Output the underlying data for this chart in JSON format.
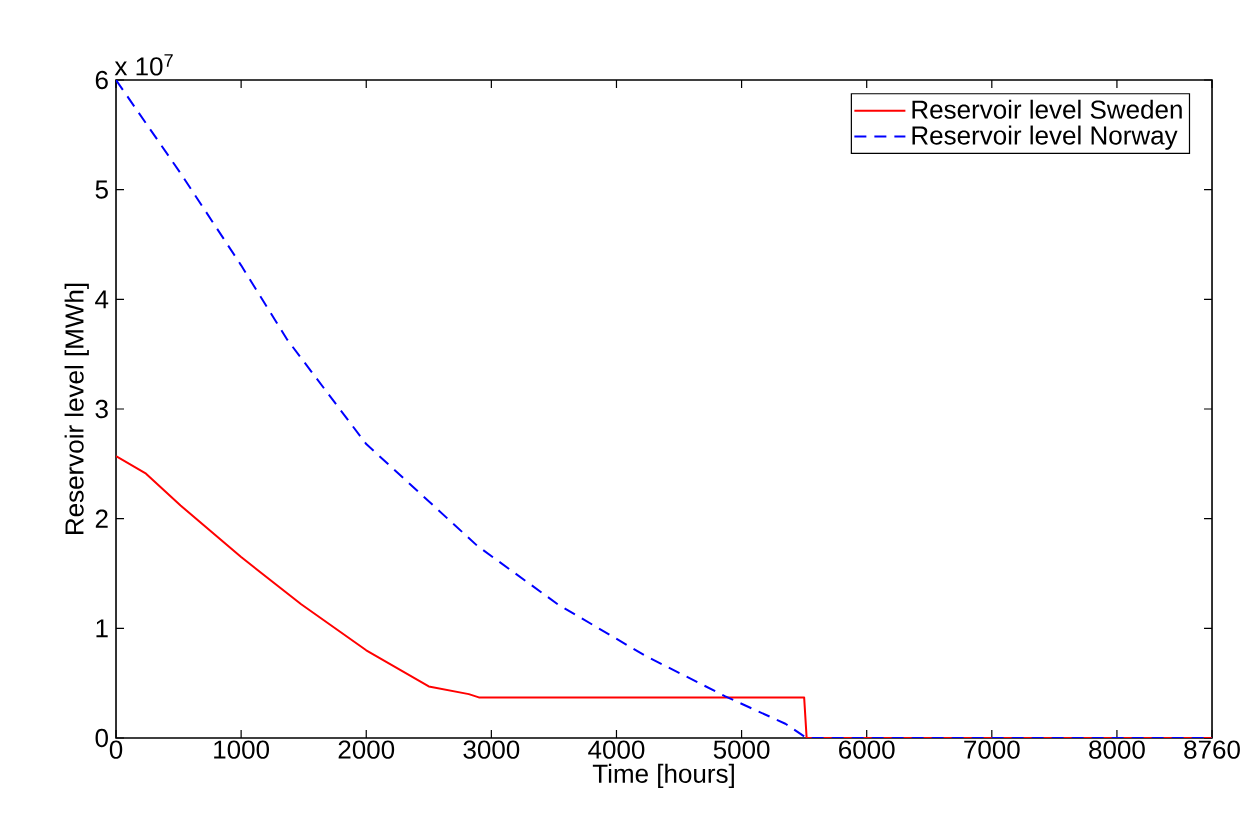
{
  "chart_data": {
    "type": "line",
    "xlabel": "Time [hours]",
    "ylabel": "Reservoir level [MWh]",
    "annotations": [
      "x 10$^{7}$"
    ],
    "xlim": [
      0,
      8760
    ],
    "xticks": [
      0,
      1000,
      2000,
      3000,
      4000,
      5000,
      6000,
      7000,
      8000,
      8760
    ],
    "ylim": [
      0,
      6
    ],
    "yticks": [
      0,
      1,
      2,
      3,
      4,
      5,
      6
    ],
    "grid": false,
    "legend": "top right",
    "marker": "none",
    "series": [
      {
        "name": "Reservoir level Sweden",
        "color": "#ff0000",
        "line_style": "solid",
        "x": [
          0,
          240,
          516,
          1000,
          1480,
          2000,
          2500,
          2820,
          2900,
          5500,
          5520,
          8760
        ],
        "values": [
          2.57,
          2.41,
          2.12,
          1.65,
          1.22,
          0.8,
          0.47,
          0.4,
          0.37,
          0.37,
          0,
          0
        ]
      },
      {
        "name": "Reservoir level Norway",
        "color": "#0000ff",
        "line_style": "dashed",
        "x": [
          0,
          516,
          1000,
          1370,
          2000,
          2890,
          3530,
          4230,
          4870,
          5350,
          5520,
          8760
        ],
        "values": [
          6.0,
          5.15,
          4.31,
          3.63,
          2.68,
          1.75,
          1.22,
          0.75,
          0.38,
          0.13,
          0,
          0
        ]
      }
    ]
  }
}
